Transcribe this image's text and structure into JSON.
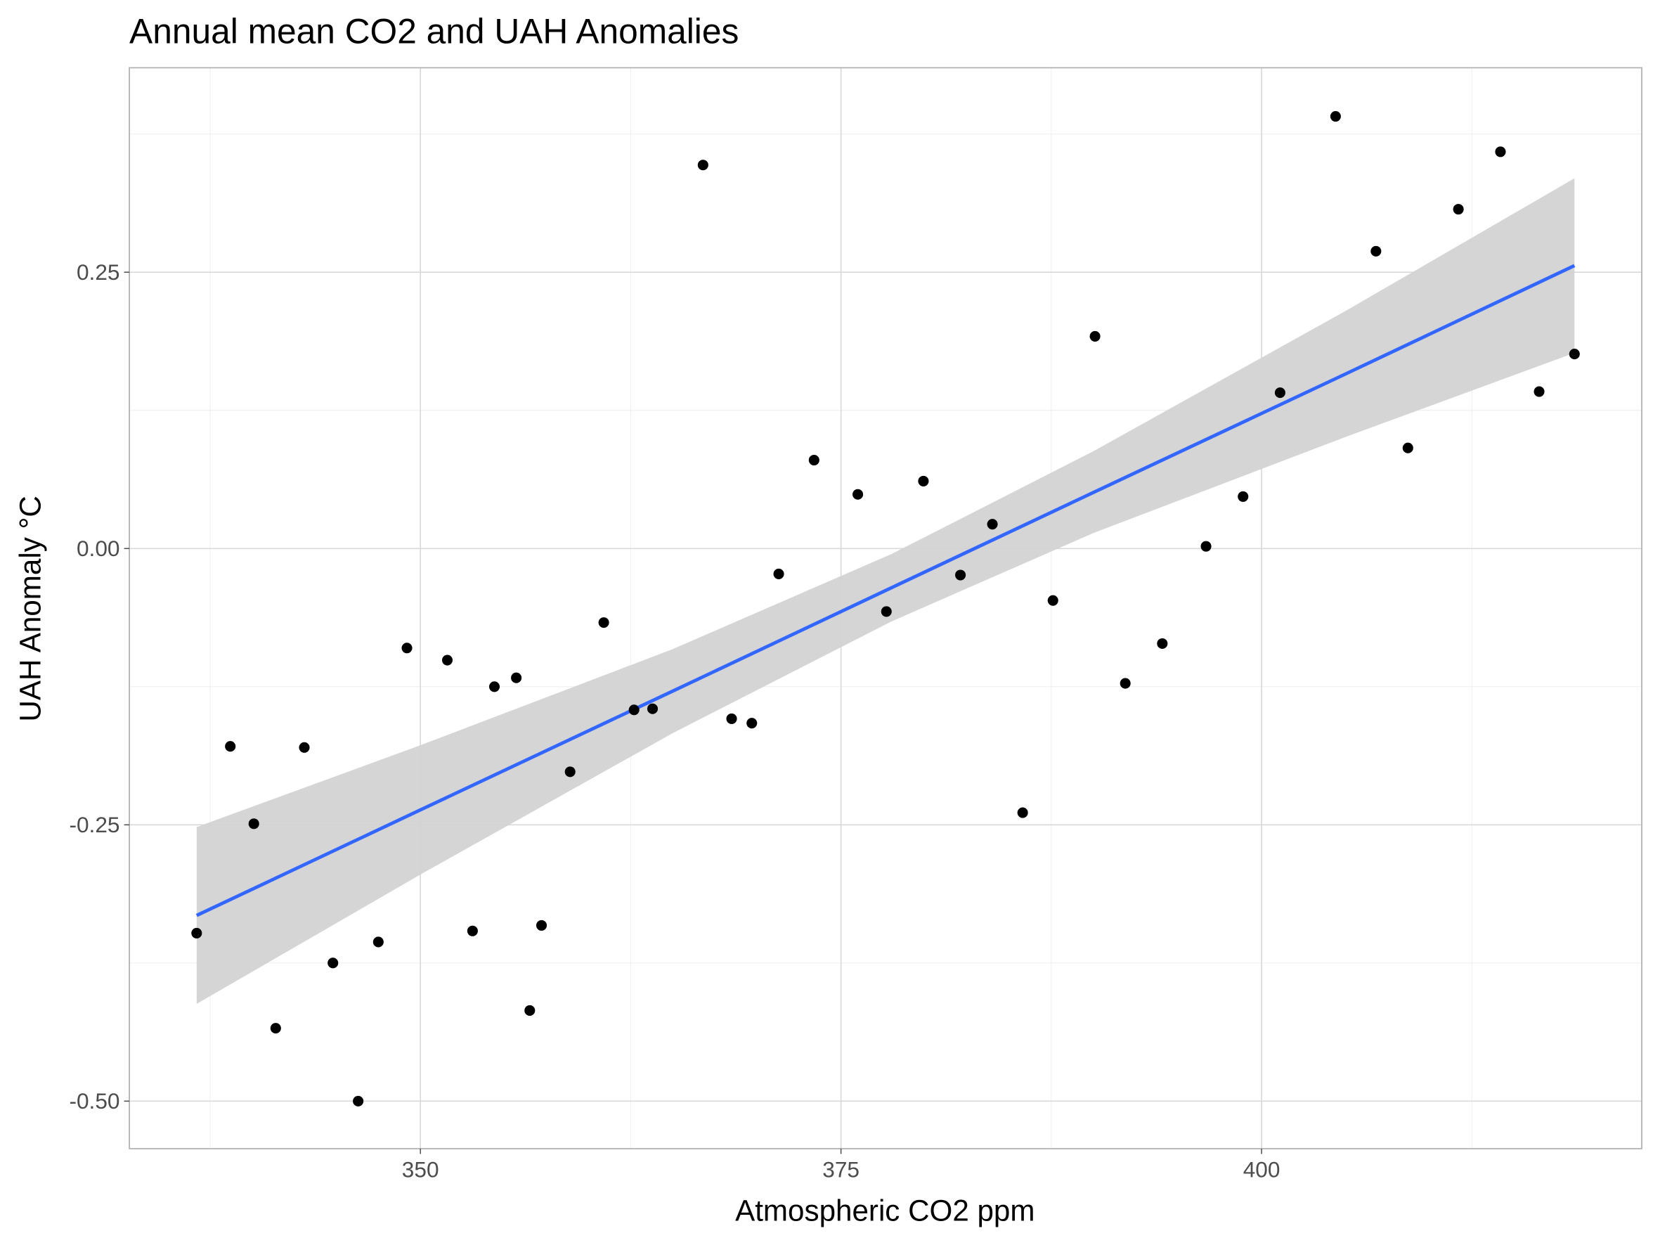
{
  "chart_data": {
    "type": "scatter",
    "title": "Annual mean CO2 and UAH Anomalies",
    "xlabel": "Atmospheric CO2 ppm",
    "ylabel": "UAH Anomaly °C",
    "xlim": [
      332.7,
      422.6
    ],
    "ylim": [
      -0.543,
      0.435
    ],
    "x_ticks": [
      350,
      375,
      400
    ],
    "x_tick_labels": [
      "350",
      "375",
      "400"
    ],
    "x_minor": [
      337.5,
      362.5,
      387.5,
      412.5
    ],
    "y_ticks": [
      -0.5,
      -0.25,
      0,
      0.25
    ],
    "y_tick_labels": [
      "-0.50",
      "-0.25",
      "0.00",
      "0.25"
    ],
    "y_minor": [
      -0.375,
      -0.125,
      0.125,
      0.375
    ],
    "grid": true,
    "points": {
      "x": [
        336.7,
        338.7,
        340.1,
        341.4,
        343.1,
        344.8,
        346.3,
        347.5,
        349.2,
        351.6,
        353.1,
        354.4,
        355.7,
        356.5,
        357.2,
        358.9,
        360.9,
        362.7,
        363.8,
        366.8,
        368.5,
        369.7,
        371.3,
        373.4,
        376.0,
        377.7,
        379.9,
        382.1,
        384.0,
        385.8,
        387.6,
        390.1,
        391.9,
        394.1,
        396.7,
        398.9,
        401.1,
        404.4,
        406.8,
        408.7,
        411.7,
        414.2,
        416.5,
        418.6
      ],
      "y": [
        -0.348,
        -0.179,
        -0.249,
        -0.434,
        -0.18,
        -0.375,
        -0.5,
        -0.356,
        -0.09,
        -0.101,
        -0.346,
        -0.125,
        -0.117,
        -0.418,
        -0.341,
        -0.202,
        -0.067,
        -0.146,
        -0.145,
        0.347,
        -0.154,
        -0.158,
        -0.023,
        0.08,
        0.049,
        -0.057,
        0.061,
        -0.024,
        0.022,
        -0.239,
        -0.047,
        0.192,
        -0.122,
        -0.086,
        0.002,
        0.047,
        0.141,
        0.391,
        0.269,
        0.091,
        0.307,
        0.359,
        0.142,
        0.176
      ]
    },
    "fit": {
      "method": "linear",
      "x": [
        336.7,
        350,
        365,
        378,
        390,
        405,
        418.6
      ],
      "y": [
        -0.332,
        -0.2365,
        -0.129,
        -0.0355,
        0.0507,
        0.158,
        0.256
      ],
      "lower": [
        -0.412,
        -0.295,
        -0.167,
        -0.066,
        0.014,
        0.101,
        0.177
      ],
      "upper": [
        -0.252,
        -0.178,
        -0.091,
        -0.005,
        0.088,
        0.215,
        0.335
      ]
    },
    "colors": {
      "points": "#000000",
      "line": "#3366FF",
      "ribbon": "#d3d3d3",
      "panel_border": "#b3b3b3"
    }
  }
}
